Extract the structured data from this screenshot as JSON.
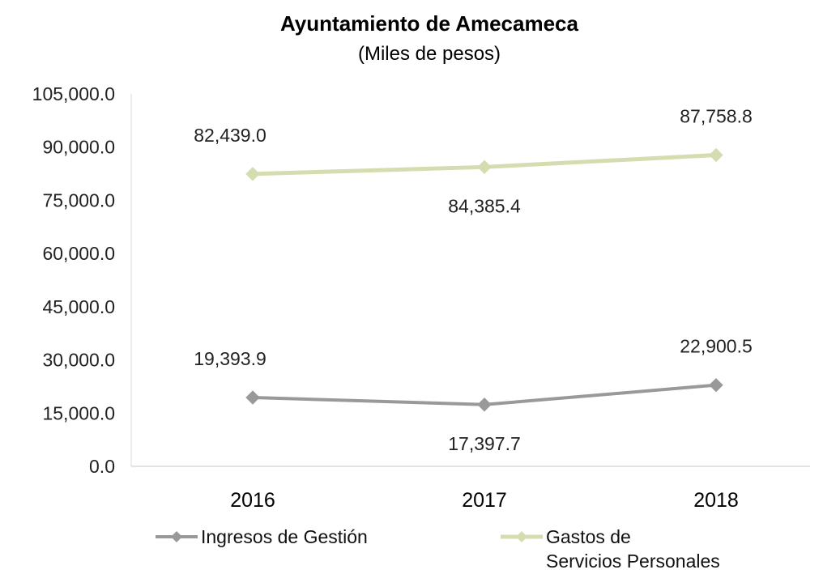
{
  "chart_data": {
    "type": "line",
    "title": "Ayuntamiento de Amecameca",
    "subtitle": "(Miles de pesos)",
    "xlabel": "",
    "ylabel": "",
    "categories": [
      "2016",
      "2017",
      "2018"
    ],
    "yticks": [
      "0.0",
      "15,000.0",
      "30,000.0",
      "45,000.0",
      "60,000.0",
      "75,000.0",
      "90,000.0",
      "105,000.0"
    ],
    "ylim": [
      0,
      105000
    ],
    "grid": false,
    "legend_position": "bottom",
    "series": [
      {
        "name": "Ingresos de Gestión",
        "legend_lines": [
          "Ingresos de Gestión"
        ],
        "values": [
          19393.9,
          17397.7,
          22900.5
        ],
        "labels": [
          "19,393.9",
          "17,397.7",
          "22,900.5"
        ],
        "label_positions": [
          "above",
          "below",
          "above"
        ],
        "color": "#999999"
      },
      {
        "name": "Gastos de Servicios Personales",
        "legend_lines": [
          "Gastos de",
          "Servicios Personales"
        ],
        "values": [
          82439.0,
          84385.4,
          87758.8
        ],
        "labels": [
          "82,439.0",
          "84,385.4",
          "87,758.8"
        ],
        "label_positions": [
          "above",
          "below",
          "above"
        ],
        "color": "#d4ddb0"
      }
    ]
  }
}
